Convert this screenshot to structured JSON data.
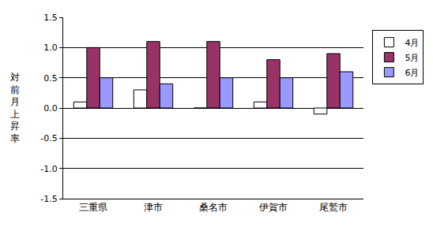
{
  "chart_data": {
    "type": "bar",
    "y_label": "対前月上昇率",
    "categories": [
      "三重県",
      "津市",
      "桑名市",
      "伊賀市",
      "尾鷲市"
    ],
    "series": [
      {
        "name": "4月",
        "color": "#FFFFFF",
        "values": [
          0.1,
          0.3,
          0.0,
          0.1,
          -0.1
        ]
      },
      {
        "name": "5月",
        "color": "#993366",
        "values": [
          1.0,
          1.1,
          1.1,
          0.8,
          0.9
        ]
      },
      {
        "name": "6月",
        "color": "#9999FF",
        "values": [
          0.5,
          0.4,
          0.5,
          0.5,
          0.6
        ]
      }
    ],
    "ylim": [
      -1.5,
      1.5
    ],
    "yticks": [
      {
        "value": -1.5,
        "label": "-1.5"
      },
      {
        "value": -1.0,
        "label": "-1.0"
      },
      {
        "value": -0.5,
        "label": "-0.5"
      },
      {
        "value": 0,
        "label": "0.0"
      },
      {
        "value": 0.5,
        "label": "0.5"
      },
      {
        "value": 1.0,
        "label": "1.0"
      },
      {
        "value": 1.5,
        "label": "1.5"
      }
    ],
    "grid": true,
    "legend": "right"
  }
}
